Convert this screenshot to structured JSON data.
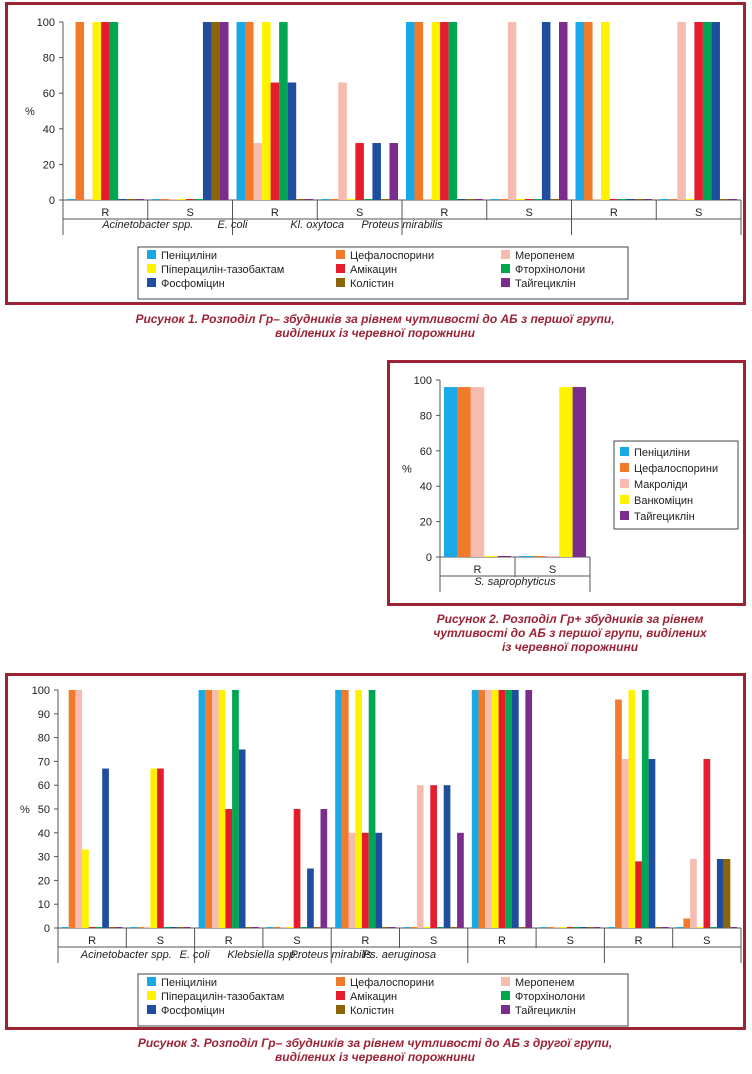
{
  "colors": {
    "frame": "#9b2335",
    "caption": "#9b2335",
    "Пеніциліни": "#19a9e6",
    "Цефалоспорини": "#f27b2b",
    "Меропенем": "#f7bcb0",
    "Макроліди": "#f7bcb0",
    "Піперацилін-тазобактам": "#fff200",
    "Ванкоміцин": "#fff200",
    "Амікацин": "#e51c2c",
    "Фторхінолони": "#00a651",
    "Фосфоміцин": "#1f4e9e",
    "Колістин": "#8b6508",
    "Тайгецикл": "#7a2d8c"
  },
  "figure1": {
    "caption_line1": "Рисунок 1. Розподіл Гр– збудників за рівнем чутливості до АБ з першої групи,",
    "caption_line2": "виділених із черевної порожнини"
  },
  "figure2": {
    "caption_line1": "Рисунок 2. Розподіл Гр+ збудників за рівнем",
    "caption_line2": "чутливості до АБ з першої групи, виділених",
    "caption_line3": "із черевної порожнини"
  },
  "figure3": {
    "caption_line1": "Рисунок 3. Розподіл Гр– збудників за рівнем чутливості до АБ з другої групи,",
    "caption_line2": "виділених із черевної порожнини"
  },
  "chart_data": [
    {
      "type": "bar",
      "ylabel": "%",
      "ylim": [
        0,
        100
      ],
      "yticks": [
        0,
        20,
        40,
        60,
        80,
        100
      ],
      "legend_position": "bottom",
      "legend_order": [
        "Пеніциліни",
        "Цефалоспорини",
        "Меропенем",
        "Піперацилін-тазобактам",
        "Амікацин",
        "Фторхінолони",
        "Фосфоміцин",
        "Колістин",
        "Тайгециклін"
      ],
      "groups": [
        {
          "name": "Acinetobacter spp.",
          "subs": [
            "R",
            "S"
          ]
        },
        {
          "name": "E. coli",
          "subs": [
            "R",
            "S"
          ]
        },
        {
          "name": "Kl. oxytoca",
          "subs": [
            "R",
            "S"
          ]
        },
        {
          "name": "Proteus mirabilis",
          "subs": [
            "R",
            "S"
          ]
        }
      ],
      "series": [
        {
          "name": "Пеніциліни",
          "values": [
            0,
            0,
            100,
            0,
            100,
            0,
            100,
            0
          ]
        },
        {
          "name": "Цефалоспорини",
          "values": [
            100,
            0,
            100,
            0,
            100,
            0,
            100,
            0
          ]
        },
        {
          "name": "Меропенем",
          "values": [
            0,
            0,
            32,
            66,
            0,
            100,
            0,
            100
          ]
        },
        {
          "name": "Піперацилін-тазобактам",
          "values": [
            100,
            0,
            100,
            0,
            100,
            0,
            100,
            0
          ]
        },
        {
          "name": "Амікацин",
          "values": [
            100,
            0,
            66,
            32,
            100,
            0,
            0,
            100
          ]
        },
        {
          "name": "Фторхінолони",
          "values": [
            100,
            0,
            100,
            0,
            100,
            0,
            0,
            100
          ]
        },
        {
          "name": "Фосфоміцин",
          "values": [
            0,
            100,
            66,
            32,
            0,
            100,
            0,
            100
          ]
        },
        {
          "name": "Колістин",
          "values": [
            0,
            100,
            0,
            0,
            0,
            0,
            0,
            0
          ]
        },
        {
          "name": "Тайгециклін",
          "values": [
            0,
            100,
            0,
            32,
            0,
            100,
            0,
            0
          ]
        }
      ]
    },
    {
      "type": "bar",
      "ylabel": "%",
      "ylim": [
        0,
        100
      ],
      "yticks": [
        0,
        20,
        40,
        60,
        80,
        100
      ],
      "legend_position": "right",
      "legend_order": [
        "Пеніциліни",
        "Цефалоспорини",
        "Макроліди",
        "Ванкоміцин",
        "Тайгециклін"
      ],
      "groups": [
        {
          "name": "S. saprophyticus",
          "subs": [
            "R",
            "S"
          ]
        }
      ],
      "series": [
        {
          "name": "Пеніциліни",
          "values": [
            96,
            0
          ]
        },
        {
          "name": "Цефалоспорини",
          "values": [
            96,
            0
          ]
        },
        {
          "name": "Макроліди",
          "values": [
            96,
            0
          ]
        },
        {
          "name": "Ванкоміцин",
          "values": [
            0,
            96
          ]
        },
        {
          "name": "Тайгециклін",
          "values": [
            0,
            96
          ]
        }
      ]
    },
    {
      "type": "bar",
      "ylabel": "%",
      "ylim": [
        0,
        100
      ],
      "yticks": [
        0,
        10,
        20,
        30,
        40,
        50,
        60,
        70,
        80,
        90,
        100
      ],
      "legend_position": "bottom",
      "legend_order": [
        "Пеніциліни",
        "Цефалоспорини",
        "Меропенем",
        "Піперацилін-тазобактам",
        "Амікацин",
        "Фторхінолони",
        "Фосфоміцин",
        "Колістин",
        "Тайгециклін"
      ],
      "groups": [
        {
          "name": "Acinetobacter spp.",
          "subs": [
            "R",
            "S"
          ]
        },
        {
          "name": "E. coli",
          "subs": [
            "R",
            "S"
          ]
        },
        {
          "name": "Klebsiella spp.",
          "subs": [
            "R",
            "S"
          ]
        },
        {
          "name": "Proteus mirabilis",
          "subs": [
            "R",
            "S"
          ]
        },
        {
          "name": "Ps. aeruginosa",
          "subs": [
            "R",
            "S"
          ]
        }
      ],
      "series": [
        {
          "name": "Пеніциліни",
          "values": [
            0,
            0,
            100,
            0,
            100,
            0,
            100,
            0,
            0,
            0
          ]
        },
        {
          "name": "Цефалоспорини",
          "values": [
            100,
            0,
            100,
            0,
            100,
            0,
            100,
            0,
            96,
            4
          ]
        },
        {
          "name": "Меропенем",
          "values": [
            100,
            0,
            100,
            0,
            40,
            60,
            100,
            0,
            71,
            29
          ]
        },
        {
          "name": "Піперацилін-тазобактам",
          "values": [
            33,
            67,
            100,
            0,
            100,
            0,
            100,
            0,
            100,
            0
          ]
        },
        {
          "name": "Амікацин",
          "values": [
            0,
            67,
            50,
            50,
            40,
            60,
            100,
            0,
            28,
            71
          ]
        },
        {
          "name": "Фторхінолони",
          "values": [
            0,
            0,
            100,
            0,
            100,
            0,
            100,
            0,
            100,
            0
          ]
        },
        {
          "name": "Фосфоміцин",
          "values": [
            67,
            0,
            75,
            25,
            40,
            60,
            100,
            0,
            71,
            29
          ]
        },
        {
          "name": "Колістин",
          "values": [
            0,
            0,
            0,
            0,
            0,
            0,
            0,
            0,
            0,
            29
          ]
        },
        {
          "name": "Тайгециклін",
          "values": [
            0,
            0,
            0,
            50,
            0,
            40,
            100,
            0,
            0,
            0
          ]
        }
      ]
    }
  ]
}
